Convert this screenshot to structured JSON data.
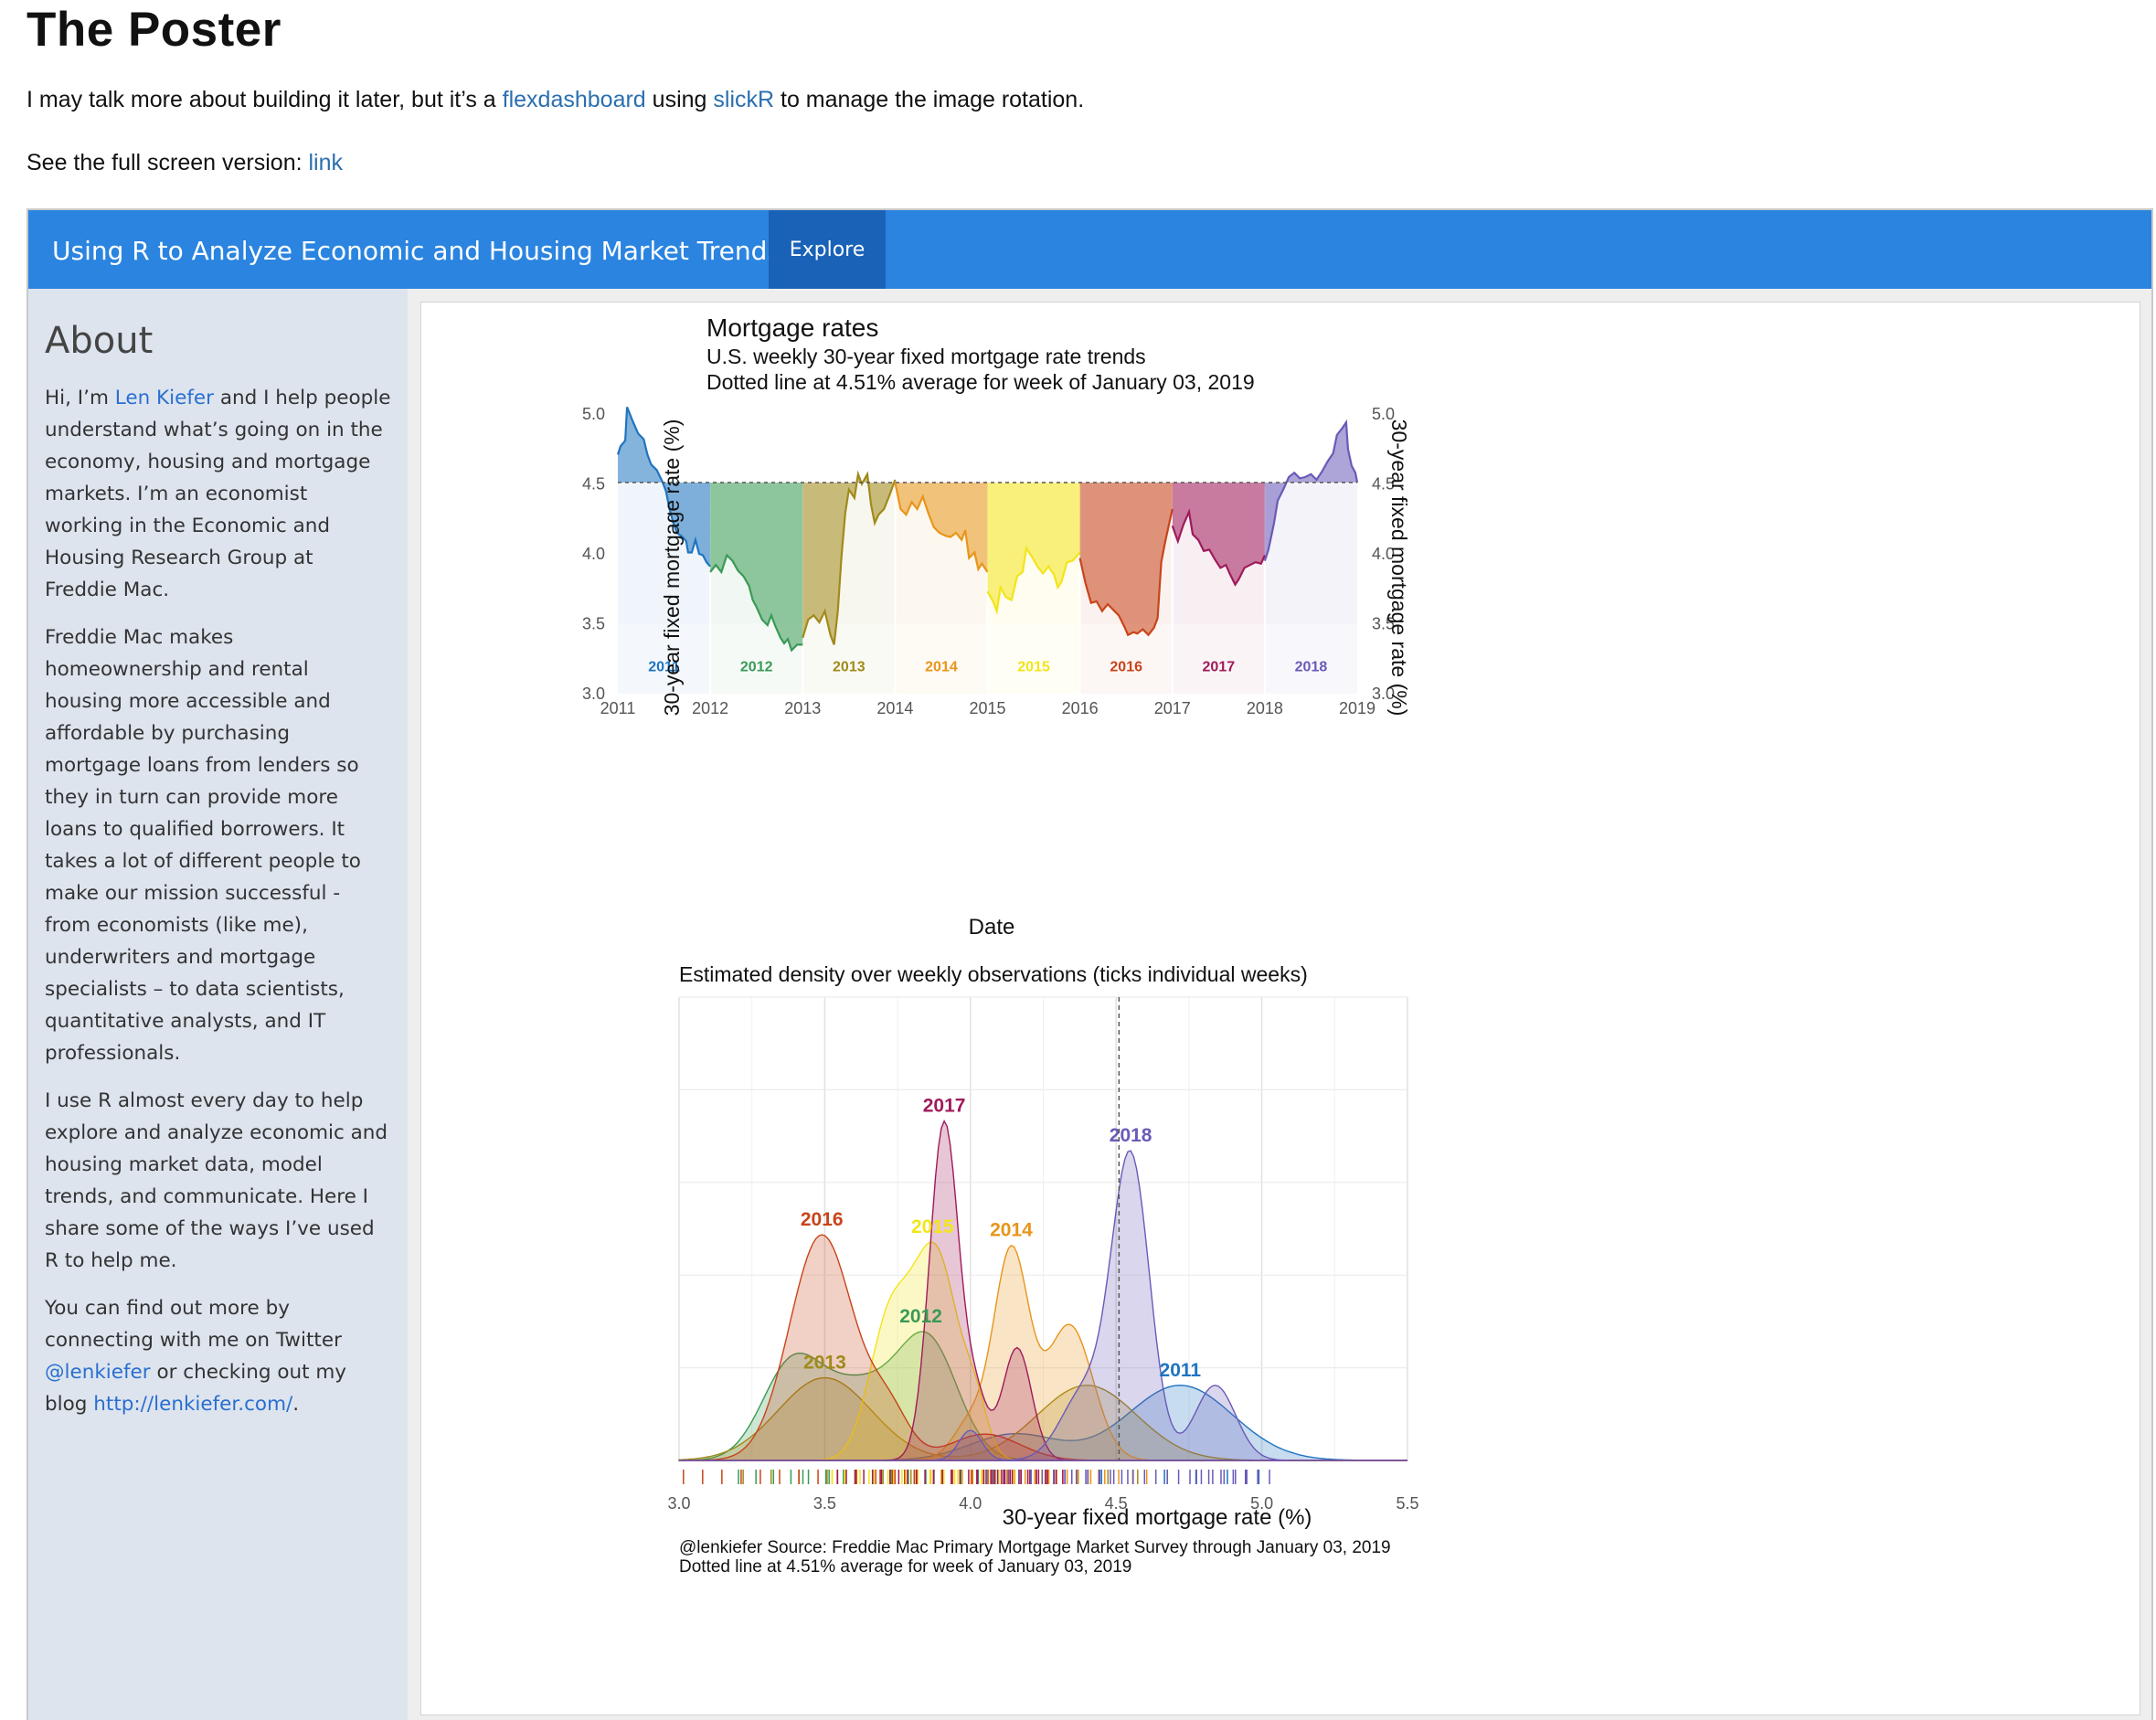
{
  "page": {
    "title": "The Poster",
    "intro": {
      "text1": "I may talk more about building it later, but it’s a ",
      "link1": "flexdashboard",
      "text2": " using ",
      "link2": "slickR",
      "text3": " to manage the image rotation."
    },
    "fullscreen": {
      "text": "See the full screen version: ",
      "link": "link"
    }
  },
  "dashboard": {
    "brand": "Using R to Analyze Economic and Housing Market Trends",
    "nav_item": "Explore",
    "colors": {
      "navbar": "#2a84e0",
      "nav_active": "#1a62b8",
      "sidebar": "#dde4ee",
      "link": "#2a6fd0"
    }
  },
  "sidebar": {
    "heading": "About",
    "p1_a": "Hi, I’m ",
    "p1_link": "Len Kiefer",
    "p1_b": " and I help people understand what’s going on in the economy, housing and mortgage markets. I’m an economist working in the Economic and Housing Research Group at Freddie Mac.",
    "p2": "Freddie Mac makes homeownership and rental housing more accessible and affordable by purchasing mortgage loans from lenders so they in turn can provide more loans to qualified borrowers. It takes a lot of different people to make our mission successful - from economists (like me), underwriters and mortgage specialists – to data scientists, quantitative analysts, and IT professionals.",
    "p3": "I use R almost every day to help explore and analyze economic and housing market data, model trends, and communicate. Here I share some of the ways I’ve used R to help me.",
    "p4_a": "You can find out more by connecting with me on Twitter ",
    "p4_link1": "@lenkiefer",
    "p4_b": " or checking out my blog ",
    "p4_link2": "http://lenkiefer.com/",
    "p4_c": "."
  },
  "chart_data": [
    {
      "type": "area",
      "title": "Mortgage rates",
      "subtitle1": "U.S. weekly 30-year fixed mortgage rate trends",
      "subtitle2": "Dotted line at 4.51% average for week of January 03, 2019",
      "xlabel": "Date",
      "ylabel": "30-year fixed mortgage rate (%)",
      "ylim": [
        3.0,
        5.0
      ],
      "xlim": [
        2011,
        2019
      ],
      "yticks": [
        "3.0",
        "3.5",
        "4.0",
        "4.5",
        "5.0"
      ],
      "xticks": [
        "2011",
        "2012",
        "2013",
        "2014",
        "2015",
        "2016",
        "2017",
        "2018",
        "2019"
      ],
      "reference": 4.51,
      "series": [
        {
          "name": "2011",
          "color": "#1f74c0",
          "points": [
            [
              0.0,
              4.71
            ],
            [
              0.03,
              4.77
            ],
            [
              0.08,
              4.81
            ],
            [
              0.1,
              5.05
            ],
            [
              0.16,
              4.95
            ],
            [
              0.22,
              4.86
            ],
            [
              0.28,
              4.82
            ],
            [
              0.32,
              4.71
            ],
            [
              0.36,
              4.64
            ],
            [
              0.42,
              4.6
            ],
            [
              0.48,
              4.52
            ],
            [
              0.52,
              4.45
            ],
            [
              0.56,
              4.32
            ],
            [
              0.6,
              4.22
            ],
            [
              0.64,
              4.15
            ],
            [
              0.7,
              4.12
            ],
            [
              0.74,
              4.09
            ],
            [
              0.76,
              4.01
            ],
            [
              0.8,
              4.01
            ],
            [
              0.84,
              4.1
            ],
            [
              0.88,
              4.0
            ],
            [
              0.92,
              3.99
            ],
            [
              0.96,
              3.94
            ],
            [
              1.0,
              3.91
            ]
          ]
        },
        {
          "name": "2012",
          "color": "#3a9a55",
          "points": [
            [
              0.0,
              3.87
            ],
            [
              0.06,
              3.92
            ],
            [
              0.12,
              3.87
            ],
            [
              0.18,
              3.99
            ],
            [
              0.24,
              3.95
            ],
            [
              0.3,
              3.88
            ],
            [
              0.36,
              3.84
            ],
            [
              0.42,
              3.77
            ],
            [
              0.46,
              3.67
            ],
            [
              0.5,
              3.62
            ],
            [
              0.56,
              3.53
            ],
            [
              0.62,
              3.49
            ],
            [
              0.66,
              3.56
            ],
            [
              0.7,
              3.49
            ],
            [
              0.76,
              3.4
            ],
            [
              0.8,
              3.36
            ],
            [
              0.84,
              3.39
            ],
            [
              0.88,
              3.31
            ],
            [
              0.94,
              3.35
            ],
            [
              1.0,
              3.35
            ]
          ]
        },
        {
          "name": "2013",
          "color": "#a08a1a",
          "points": [
            [
              0.0,
              3.4
            ],
            [
              0.06,
              3.53
            ],
            [
              0.12,
              3.56
            ],
            [
              0.18,
              3.51
            ],
            [
              0.24,
              3.59
            ],
            [
              0.3,
              3.42
            ],
            [
              0.34,
              3.35
            ],
            [
              0.38,
              3.59
            ],
            [
              0.42,
              3.98
            ],
            [
              0.46,
              4.29
            ],
            [
              0.5,
              4.46
            ],
            [
              0.56,
              4.4
            ],
            [
              0.6,
              4.57
            ],
            [
              0.64,
              4.5
            ],
            [
              0.7,
              4.57
            ],
            [
              0.74,
              4.35
            ],
            [
              0.78,
              4.22
            ],
            [
              0.82,
              4.28
            ],
            [
              0.88,
              4.32
            ],
            [
              0.94,
              4.42
            ],
            [
              1.0,
              4.53
            ]
          ]
        },
        {
          "name": "2014",
          "color": "#e8951a",
          "points": [
            [
              0.0,
              4.51
            ],
            [
              0.06,
              4.32
            ],
            [
              0.12,
              4.28
            ],
            [
              0.18,
              4.37
            ],
            [
              0.24,
              4.32
            ],
            [
              0.3,
              4.41
            ],
            [
              0.36,
              4.29
            ],
            [
              0.42,
              4.19
            ],
            [
              0.48,
              4.15
            ],
            [
              0.54,
              4.13
            ],
            [
              0.6,
              4.12
            ],
            [
              0.66,
              4.15
            ],
            [
              0.72,
              4.1
            ],
            [
              0.76,
              4.17
            ],
            [
              0.8,
              3.97
            ],
            [
              0.86,
              4.01
            ],
            [
              0.9,
              3.89
            ],
            [
              0.94,
              3.93
            ],
            [
              1.0,
              3.87
            ]
          ]
        },
        {
          "name": "2015",
          "color": "#f2e51a",
          "points": [
            [
              0.0,
              3.73
            ],
            [
              0.06,
              3.66
            ],
            [
              0.1,
              3.59
            ],
            [
              0.14,
              3.76
            ],
            [
              0.2,
              3.69
            ],
            [
              0.26,
              3.67
            ],
            [
              0.32,
              3.84
            ],
            [
              0.38,
              3.87
            ],
            [
              0.42,
              4.04
            ],
            [
              0.48,
              3.98
            ],
            [
              0.54,
              3.91
            ],
            [
              0.6,
              3.86
            ],
            [
              0.66,
              3.91
            ],
            [
              0.72,
              3.85
            ],
            [
              0.76,
              3.76
            ],
            [
              0.8,
              3.8
            ],
            [
              0.86,
              3.94
            ],
            [
              0.92,
              3.95
            ],
            [
              1.0,
              4.01
            ]
          ]
        },
        {
          "name": "2016",
          "color": "#c8441a",
          "points": [
            [
              0.0,
              3.97
            ],
            [
              0.06,
              3.79
            ],
            [
              0.12,
              3.65
            ],
            [
              0.18,
              3.66
            ],
            [
              0.24,
              3.59
            ],
            [
              0.3,
              3.64
            ],
            [
              0.36,
              3.6
            ],
            [
              0.42,
              3.56
            ],
            [
              0.48,
              3.48
            ],
            [
              0.52,
              3.42
            ],
            [
              0.58,
              3.44
            ],
            [
              0.62,
              3.43
            ],
            [
              0.68,
              3.46
            ],
            [
              0.74,
              3.42
            ],
            [
              0.8,
              3.47
            ],
            [
              0.84,
              3.54
            ],
            [
              0.88,
              3.94
            ],
            [
              0.92,
              4.08
            ],
            [
              0.96,
              4.2
            ],
            [
              1.0,
              4.32
            ]
          ]
        },
        {
          "name": "2017",
          "color": "#a01a5a",
          "points": [
            [
              0.0,
              4.2
            ],
            [
              0.06,
              4.09
            ],
            [
              0.12,
              4.21
            ],
            [
              0.18,
              4.3
            ],
            [
              0.22,
              4.14
            ],
            [
              0.28,
              4.1
            ],
            [
              0.34,
              4.02
            ],
            [
              0.4,
              4.03
            ],
            [
              0.46,
              3.96
            ],
            [
              0.52,
              3.9
            ],
            [
              0.58,
              3.92
            ],
            [
              0.62,
              3.86
            ],
            [
              0.68,
              3.78
            ],
            [
              0.72,
              3.82
            ],
            [
              0.78,
              3.9
            ],
            [
              0.84,
              3.92
            ],
            [
              0.9,
              3.94
            ],
            [
              0.96,
              3.93
            ],
            [
              1.0,
              3.99
            ]
          ]
        },
        {
          "name": "2018",
          "color": "#6a5ab8",
          "points": [
            [
              0.0,
              3.95
            ],
            [
              0.04,
              4.03
            ],
            [
              0.1,
              4.22
            ],
            [
              0.14,
              4.38
            ],
            [
              0.2,
              4.46
            ],
            [
              0.26,
              4.55
            ],
            [
              0.32,
              4.58
            ],
            [
              0.38,
              4.54
            ],
            [
              0.44,
              4.55
            ],
            [
              0.5,
              4.57
            ],
            [
              0.56,
              4.53
            ],
            [
              0.62,
              4.59
            ],
            [
              0.68,
              4.66
            ],
            [
              0.74,
              4.72
            ],
            [
              0.78,
              4.85
            ],
            [
              0.84,
              4.9
            ],
            [
              0.88,
              4.94
            ],
            [
              0.9,
              4.75
            ],
            [
              0.94,
              4.63
            ],
            [
              0.98,
              4.58
            ],
            [
              1.0,
              4.51
            ]
          ]
        }
      ]
    },
    {
      "type": "area",
      "title": "Estimated density over weekly observations (ticks individual weeks)",
      "xlabel": "30-year fixed mortgage rate (%)",
      "xlim": [
        3.0,
        5.5
      ],
      "xticks": [
        "3.0",
        "3.5",
        "4.0",
        "4.5",
        "5.0",
        "5.5"
      ],
      "reference": 4.51,
      "caption1": "@lenkiefer Source: Freddie Mac Primary Mortgage Market Survey through January 03, 2019",
      "caption2": "Dotted line at 4.51% average for week of January 03, 2019",
      "series": [
        {
          "name": "2011",
          "color": "#1f74c0",
          "components": [
            [
              4.72,
              0.18,
              2.0
            ],
            [
              4.15,
              0.15,
              0.7
            ]
          ]
        },
        {
          "name": "2012",
          "color": "#3a9a55",
          "components": [
            [
              3.38,
              0.1,
              2.2
            ],
            [
              3.86,
              0.1,
              2.8
            ],
            [
              3.62,
              0.15,
              2.0
            ]
          ]
        },
        {
          "name": "2013",
          "color": "#a08a1a",
          "components": [
            [
              3.5,
              0.16,
              2.2
            ],
            [
              4.4,
              0.17,
              2.0
            ]
          ]
        },
        {
          "name": "2014",
          "color": "#e8951a",
          "components": [
            [
              4.14,
              0.06,
              5.5
            ],
            [
              4.34,
              0.08,
              3.6
            ],
            [
              4.0,
              0.06,
              1.0
            ]
          ]
        },
        {
          "name": "2015",
          "color": "#f2e51a",
          "components": [
            [
              3.72,
              0.07,
              3.5
            ],
            [
              3.88,
              0.08,
              5.5
            ],
            [
              4.02,
              0.04,
              1.0
            ]
          ]
        },
        {
          "name": "2016",
          "color": "#c8441a",
          "components": [
            [
              3.49,
              0.11,
              6.0
            ],
            [
              3.72,
              0.07,
              1.2
            ],
            [
              4.05,
              0.12,
              0.7
            ]
          ]
        },
        {
          "name": "2017",
          "color": "#a01a5a",
          "components": [
            [
              3.91,
              0.05,
              9.0
            ],
            [
              4.16,
              0.05,
              3.0
            ],
            [
              4.02,
              0.04,
              1.5
            ]
          ]
        },
        {
          "name": "2018",
          "color": "#6a5ab8",
          "components": [
            [
              4.55,
              0.065,
              8.0
            ],
            [
              4.84,
              0.07,
              2.0
            ],
            [
              4.39,
              0.08,
              1.8
            ],
            [
              4.0,
              0.04,
              0.8
            ]
          ]
        }
      ]
    }
  ]
}
